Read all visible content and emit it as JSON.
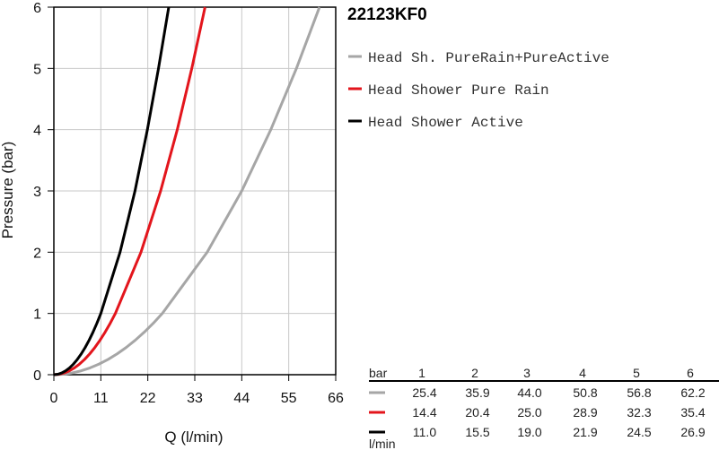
{
  "chart_data": {
    "type": "line",
    "title": "22123KF0",
    "xlabel": "Q (l/min)",
    "ylabel": "Pressure (bar)",
    "xlim": [
      0,
      66
    ],
    "ylim": [
      0,
      6
    ],
    "x_ticks": [
      "0",
      "11",
      "22",
      "33",
      "44",
      "55",
      "66"
    ],
    "y_ticks": [
      "0",
      "1",
      "2",
      "3",
      "4",
      "5",
      "6"
    ],
    "grid": true,
    "legend_position": "right",
    "series": [
      {
        "name": "Head Sh. PureRain+PureActive",
        "color": "#a6a6a6",
        "x": [
          0,
          25.4,
          35.9,
          44.0,
          50.8,
          56.8,
          62.2
        ],
        "y": [
          0,
          1,
          2,
          3,
          4,
          5,
          6
        ]
      },
      {
        "name": "Head Shower Pure Rain",
        "color": "#e3151c",
        "x": [
          0,
          14.4,
          20.4,
          25.0,
          28.9,
          32.3,
          35.4
        ],
        "y": [
          0,
          1,
          2,
          3,
          4,
          5,
          6
        ]
      },
      {
        "name": "Head Shower Active",
        "color": "#000000",
        "x": [
          0,
          11.0,
          15.5,
          19.0,
          21.9,
          24.5,
          26.9
        ],
        "y": [
          0,
          1,
          2,
          3,
          4,
          5,
          6
        ]
      }
    ],
    "table": {
      "header_label": "bar",
      "unit_label": "l/min",
      "columns": [
        "1",
        "2",
        "3",
        "4",
        "5",
        "6"
      ],
      "rows": [
        {
          "color": "#a6a6a6",
          "values": [
            "25.4",
            "35.9",
            "44.0",
            "50.8",
            "56.8",
            "62.2"
          ]
        },
        {
          "color": "#e3151c",
          "values": [
            "14.4",
            "20.4",
            "25.0",
            "28.9",
            "32.3",
            "35.4"
          ]
        },
        {
          "color": "#000000",
          "values": [
            "11.0",
            "15.5",
            "19.0",
            "21.9",
            "24.5",
            "26.9"
          ]
        }
      ]
    }
  }
}
